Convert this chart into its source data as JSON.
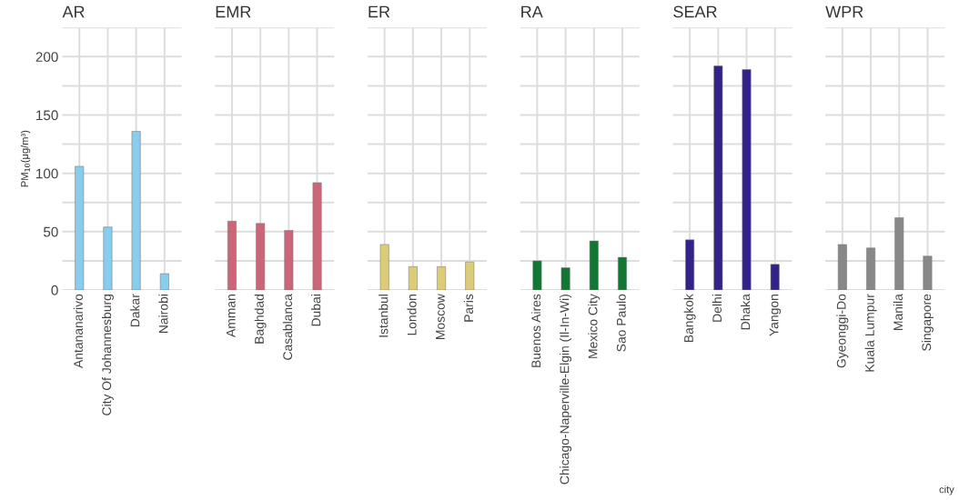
{
  "chart_data": [
    {
      "type": "bar",
      "title": "AR",
      "ylabel": "PM$_{10}$(μg/m³)",
      "categories": [
        "Antananarivo",
        "City Of Johannesburg",
        "Dakar",
        "Nairobi"
      ],
      "values": [
        106,
        54,
        136,
        14
      ],
      "color": "#88ccee",
      "ylim": [
        0,
        225
      ],
      "yticks": [
        0,
        {
          "value": 25,
          "label": null
        },
        50,
        {
          "value": 75,
          "label": null
        },
        100,
        {
          "value": 125,
          "label": null
        },
        150,
        {
          "value": 175,
          "label": null
        },
        200,
        {
          "value": 225,
          "label": null
        }
      ],
      "grid": true
    },
    {
      "type": "bar",
      "title": "EMR",
      "categories": [
        "Amman",
        "Baghdad",
        "Casablanca",
        "Dubai"
      ],
      "values": [
        59,
        57,
        51,
        92
      ],
      "color": "#cc6677",
      "ylim": [
        0,
        225
      ],
      "yticks": [
        0,
        {
          "value": 25,
          "label": null
        },
        50,
        {
          "value": 75,
          "label": null
        },
        100,
        {
          "value": 125,
          "label": null
        },
        150,
        {
          "value": 175,
          "label": null
        },
        200,
        {
          "value": 225,
          "label": null
        }
      ],
      "grid": true,
      "tick_labels": "x"
    },
    {
      "type": "bar",
      "title": "ER",
      "categories": [
        "Istanbul",
        "London",
        "Moscow",
        "Paris"
      ],
      "values": [
        39,
        20,
        20,
        24
      ],
      "color": "#ddcc77",
      "ylim": [
        0,
        225
      ],
      "yticks": [
        0,
        {
          "value": 25,
          "label": null
        },
        50,
        {
          "value": 75,
          "label": null
        },
        100,
        {
          "value": 125,
          "label": null
        },
        150,
        {
          "value": 175,
          "label": null
        },
        200,
        {
          "value": 225,
          "label": null
        }
      ],
      "grid": true,
      "tick_labels": "x"
    },
    {
      "type": "bar",
      "title": "RA",
      "categories": [
        "Buenos Aires",
        "Chicago-Naperville-Elgin (Il-In-Wi)",
        "Mexico City",
        "Sao Paulo"
      ],
      "values": [
        25,
        19,
        42,
        28
      ],
      "color": "#117733",
      "ylim": [
        0,
        225
      ],
      "yticks": [
        0,
        {
          "value": 25,
          "label": null
        },
        50,
        {
          "value": 75,
          "label": null
        },
        100,
        {
          "value": 125,
          "label": null
        },
        150,
        {
          "value": 175,
          "label": null
        },
        200,
        {
          "value": 225,
          "label": null
        }
      ],
      "grid": true,
      "tick_labels": "x"
    },
    {
      "type": "bar",
      "title": "SEAR",
      "categories": [
        "Bangkok",
        "Delhi",
        "Dhaka",
        "Yangon"
      ],
      "values": [
        43,
        192,
        189,
        22
      ],
      "color": "#332288",
      "ylim": [
        0,
        225
      ],
      "yticks": [
        0,
        {
          "value": 25,
          "label": null
        },
        50,
        {
          "value": 75,
          "label": null
        },
        100,
        {
          "value": 125,
          "label": null
        },
        150,
        {
          "value": 175,
          "label": null
        },
        200,
        {
          "value": 225,
          "label": null
        }
      ],
      "grid": true,
      "tick_labels": "x"
    },
    {
      "type": "bar",
      "title": "WPR",
      "xlabel": "city",
      "categories": [
        "Gyeonggi-Do",
        "Kuala Lumpur",
        "Manila",
        "Singapore"
      ],
      "values": [
        39,
        36,
        62,
        29
      ],
      "color": "#888888",
      "ylim": [
        0,
        225
      ],
      "yticks": [
        0,
        {
          "value": 25,
          "label": null
        },
        50,
        {
          "value": 75,
          "label": null
        },
        100,
        {
          "value": 125,
          "label": null
        },
        150,
        {
          "value": 175,
          "label": null
        },
        200,
        {
          "value": 225,
          "label": null
        }
      ],
      "grid": true,
      "tick_labels": "x"
    }
  ]
}
